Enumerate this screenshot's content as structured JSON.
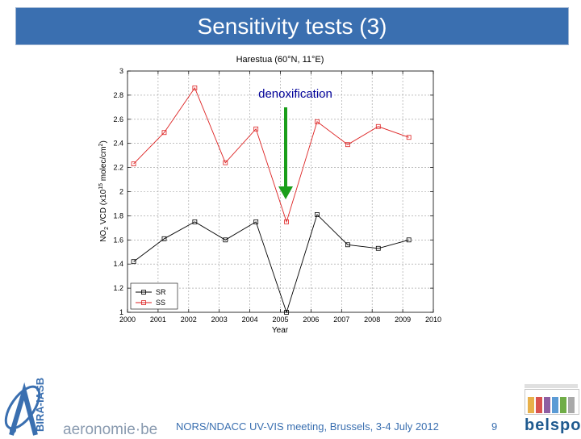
{
  "slide_title": "Sensitivity tests (3)",
  "footer": {
    "meeting": "NORS/NDACC UV-VIS meeting, Brussels, 3-4 July 2012",
    "page_number": "9",
    "logo_left_text": "aeronomie·be",
    "logo_left_vertical": "BIRA-IASB",
    "logo_right_text": "belspo"
  },
  "chart_data": {
    "type": "line",
    "title": "Harestua (60°N, 11°E)",
    "xlabel": "Year",
    "ylabel": "NO2 VCD (x10^15 molec/cm^2)",
    "ylabel_parts": {
      "a": "NO",
      "b": "2",
      "c": " VCD (x10",
      "d": "15",
      "e": " molec/cm",
      "f": "2",
      "g": ")"
    },
    "xlim": [
      2000,
      2010
    ],
    "ylim": [
      1,
      3
    ],
    "xticks": [
      2000,
      2001,
      2002,
      2003,
      2004,
      2005,
      2006,
      2007,
      2008,
      2009,
      2010
    ],
    "xtick_labels": [
      "2000",
      "2001",
      "2002",
      "2003",
      "2004",
      "2005",
      "2006",
      "2007",
      "2008",
      "2009",
      "2010"
    ],
    "yticks": [
      1,
      1.2,
      1.4,
      1.6,
      1.8,
      2,
      2.2,
      2.4,
      2.6,
      2.8,
      3
    ],
    "ytick_labels": [
      "1",
      "1.2",
      "1.4",
      "1.6",
      "1.8",
      "2",
      "2.2",
      "2.4",
      "2.6",
      "2.8",
      "3"
    ],
    "annotation": "denoxification",
    "legend_position": "bottom-left",
    "series": [
      {
        "name": "SR",
        "color": "#000000",
        "x": [
          2000.2,
          2001.2,
          2002.2,
          2003.2,
          2004.2,
          2005.2,
          2006.2,
          2007.2,
          2008.2,
          2009.2
        ],
        "values": [
          1.42,
          1.61,
          1.75,
          1.6,
          1.75,
          1.0,
          1.81,
          1.56,
          1.53,
          1.6
        ]
      },
      {
        "name": "SS",
        "color": "#dd2222",
        "x": [
          2000.2,
          2001.2,
          2002.2,
          2003.2,
          2004.2,
          2005.2,
          2006.2,
          2007.2,
          2008.2,
          2009.2
        ],
        "values": [
          2.23,
          2.49,
          2.86,
          2.24,
          2.52,
          1.75,
          2.58,
          2.39,
          2.54,
          2.45
        ]
      }
    ]
  },
  "colors": {
    "title_bar": "#3a6fb0",
    "arrow": "#1a9e1a",
    "annotation": "#000099"
  }
}
